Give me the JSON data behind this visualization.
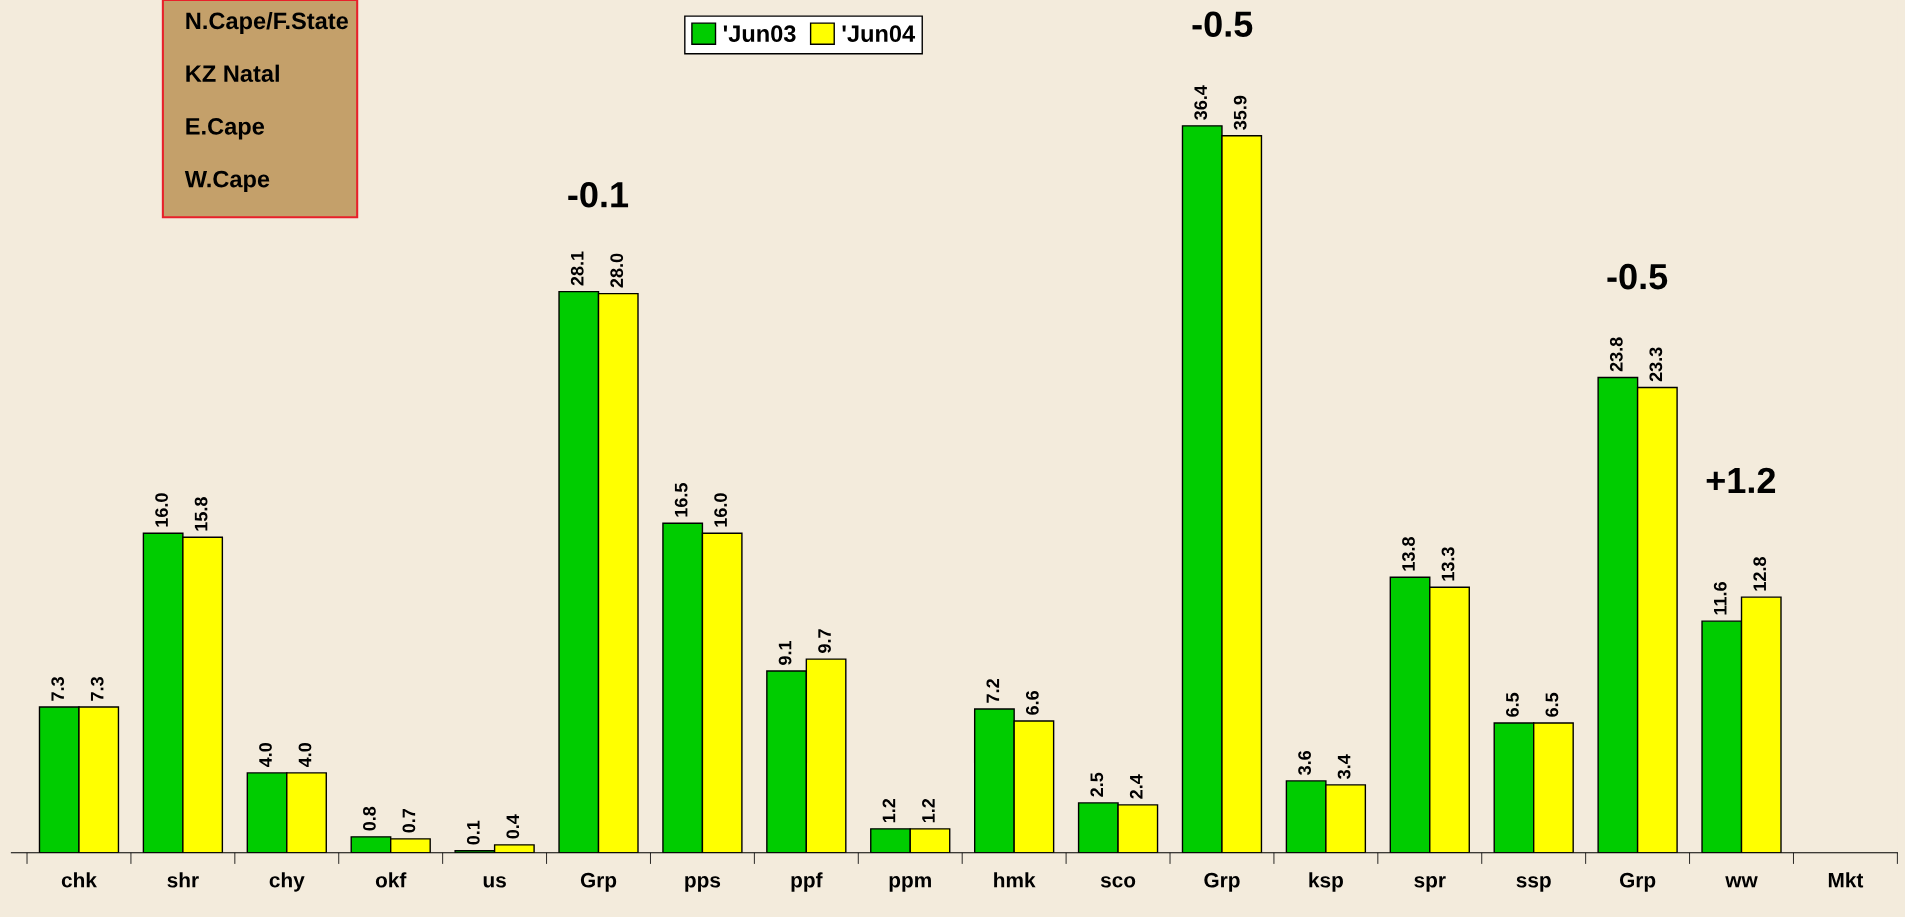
{
  "chart_data": {
    "type": "bar",
    "categories": [
      "chk",
      "shr",
      "chy",
      "okf",
      "us",
      "Grp",
      "pps",
      "ppf",
      "ppm",
      "hmk",
      "sco",
      "Grp",
      "ksp",
      "spr",
      "ssp",
      "Grp",
      "ww",
      "Mkt"
    ],
    "series": [
      {
        "name": "'Jun03",
        "color": "#00cc00",
        "values": [
          7.3,
          16.0,
          4.0,
          0.8,
          0.1,
          28.1,
          16.5,
          9.1,
          1.2,
          7.2,
          2.5,
          36.4,
          3.6,
          13.8,
          6.5,
          23.8,
          11.6,
          null
        ],
        "value_labels": [
          "7.3",
          "16.0",
          "4.0",
          "0.8",
          "0.1",
          "28.1",
          "16.5",
          "9.1",
          "1.2",
          "7.2",
          "2.5",
          "36.4",
          "3.6",
          "13.8",
          "6.5",
          "23.8",
          "11.6",
          null
        ]
      },
      {
        "name": "'Jun04",
        "color": "#ffff00",
        "values": [
          7.3,
          15.8,
          4.0,
          0.7,
          0.4,
          28.0,
          16.0,
          9.7,
          1.2,
          6.6,
          2.4,
          35.9,
          3.4,
          13.3,
          6.5,
          23.3,
          12.8,
          null
        ],
        "value_labels": [
          "7.3",
          "15.8",
          "4.0",
          "0.7",
          "0.4",
          "28.0",
          "16.0",
          "9.7",
          "1.2",
          "6.6",
          "2.4",
          "35.9",
          "3.4",
          "13.3",
          "6.5",
          "23.3",
          "12.8",
          null
        ]
      }
    ],
    "ylim": [
      0,
      42.7
    ],
    "tick_labels": "x",
    "legend": "top",
    "grid": false,
    "annotations": [
      "-0.1",
      "-0.5",
      "-0.5",
      "+1.2",
      "N.Cape/F.State",
      "KZ Natal",
      "E.Cape",
      "W.Cape"
    ]
  }
}
